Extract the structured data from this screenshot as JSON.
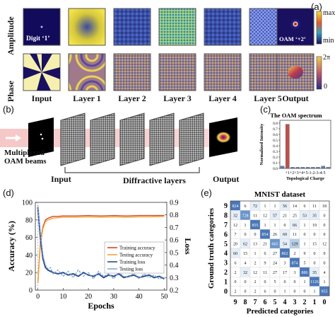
{
  "panel_labels": {
    "a": "(a)",
    "b": "(b)",
    "c": "(c)",
    "d": "(d)",
    "e": "(e)"
  },
  "panel_a": {
    "row_labels": [
      "Amplitude",
      "Phase"
    ],
    "column_labels": [
      "Input",
      "Layer 1",
      "Layer 2",
      "Layer 3",
      "Layer 4",
      "Layer 5",
      "Output"
    ],
    "tile_captions": {
      "input": "Digit ‘1’",
      "output": "OAM ‘+2’"
    },
    "amplitude_colorbar": {
      "max": "max",
      "min": "min"
    },
    "phase_colorbar": {
      "max": "2π",
      "min": "0"
    }
  },
  "panel_b": {
    "source_label_1": "Multiplexed",
    "source_label_2": "OAM beams",
    "input_label": "Input",
    "layers_label": "Diffractive layers",
    "output_label": "Output"
  },
  "chart_data": [
    {
      "type": "bar",
      "title": "The OAM spectrum",
      "xlabel": "Topological Charge",
      "ylabel": "Normalized Intensity",
      "categories": [
        "+1",
        "+2",
        "+3",
        "+4",
        "+5",
        "-1",
        "-2",
        "-3",
        "-4",
        "-5"
      ],
      "values": [
        0.04,
        0.78,
        0.02,
        0.02,
        0.02,
        0.02,
        0.02,
        0.02,
        0.04,
        0.02
      ],
      "ylim": [
        0,
        0.85
      ],
      "yticks": [
        "0.0",
        "0.1",
        "0.2",
        "0.3",
        "0.4",
        "0.5",
        "0.6",
        "0.7",
        "0.8"
      ],
      "tick_text": "+1+2+3+4+5-1-2-3-4-5",
      "colors": {
        "bars": "#5b7db8",
        "highlight": "#c0504d"
      }
    },
    {
      "type": "line",
      "xlabel": "Epochs",
      "ylabel": "Accuracy (%)",
      "y2label": "Loss",
      "xlim": [
        -1,
        51
      ],
      "ylim": [
        0,
        100
      ],
      "y2lim": [
        0.2,
        0.9
      ],
      "xticks": [
        "0",
        "10",
        "20",
        "30",
        "40",
        "50"
      ],
      "yticks": [
        "0",
        "20",
        "40",
        "60",
        "80",
        "100"
      ],
      "y2ticks": [
        "0.2",
        "0.3",
        "0.4",
        "0.5",
        "0.6",
        "0.7",
        "0.8",
        "0.9"
      ],
      "legend_position": "center-right",
      "series": [
        {
          "name": "Training accuracy",
          "axis": "left",
          "color": "#d9442b",
          "x": [
            0,
            1,
            2,
            3,
            4,
            5,
            6,
            8,
            10,
            15,
            20,
            25,
            30,
            35,
            40,
            45,
            50
          ],
          "y": [
            8,
            55,
            72,
            80,
            82,
            83,
            84,
            84,
            84.5,
            84.5,
            85,
            84.5,
            85,
            84.5,
            85,
            85,
            85
          ]
        },
        {
          "name": "Testing accuracy",
          "axis": "left",
          "color": "#f0a535",
          "x": [
            0,
            1,
            2,
            3,
            4,
            5,
            6,
            8,
            10,
            15,
            20,
            25,
            30,
            35,
            40,
            45,
            50
          ],
          "y": [
            8,
            52,
            70,
            78,
            80,
            81,
            82,
            82.5,
            83,
            83,
            83.5,
            83,
            83.5,
            83,
            83.5,
            83.5,
            84
          ]
        },
        {
          "name": "Training loss",
          "axis": "right",
          "color": "#2c4f8c",
          "x": [
            0,
            1,
            2,
            3,
            4,
            5,
            6,
            8,
            10,
            12,
            14,
            16,
            18,
            20,
            22,
            24,
            26,
            28,
            30,
            32,
            34,
            36,
            38,
            40,
            42,
            44,
            46,
            48,
            50
          ],
          "y": [
            0.86,
            0.62,
            0.45,
            0.38,
            0.36,
            0.35,
            0.34,
            0.33,
            0.34,
            0.32,
            0.33,
            0.31,
            0.34,
            0.32,
            0.31,
            0.33,
            0.3,
            0.32,
            0.31,
            0.33,
            0.3,
            0.31,
            0.32,
            0.3,
            0.31,
            0.32,
            0.3,
            0.31,
            0.29
          ]
        },
        {
          "name": "Testing loss",
          "axis": "right",
          "color": "#8aa8d8",
          "x": [
            0,
            1,
            2,
            3,
            4,
            5,
            6,
            8,
            10,
            12,
            14,
            16,
            18,
            20,
            22,
            24,
            26,
            28,
            30,
            32,
            34,
            36,
            38,
            40,
            42,
            44,
            46,
            48,
            50
          ],
          "y": [
            0.88,
            0.66,
            0.48,
            0.4,
            0.37,
            0.38,
            0.33,
            0.36,
            0.31,
            0.35,
            0.3,
            0.36,
            0.31,
            0.34,
            0.29,
            0.35,
            0.31,
            0.33,
            0.29,
            0.34,
            0.31,
            0.3,
            0.34,
            0.29,
            0.33,
            0.3,
            0.32,
            0.29,
            0.3
          ]
        }
      ]
    },
    {
      "type": "heatmap",
      "title": "MNIST dataset",
      "xlabel": "Predicted categories",
      "ylabel": "Ground truth categories",
      "row_labels": [
        "9",
        "8",
        "7",
        "6",
        "5",
        "4",
        "3",
        "2",
        "1",
        "0"
      ],
      "col_labels": [
        "9",
        "8",
        "7",
        "6",
        "5",
        "4",
        "3",
        "2",
        "1",
        "0"
      ],
      "values": [
        [
          824,
          6,
          72,
          1,
          1,
          56,
          14,
          6,
          11,
          18
        ],
        [
          32,
          728,
          11,
          12,
          57,
          21,
          25,
          53,
          35,
          0
        ],
        [
          12,
          1,
          855,
          1,
          1,
          0,
          66,
          1,
          19,
          0
        ],
        [
          7,
          0,
          0,
          854,
          26,
          60,
          11,
          0,
          0,
          0
        ],
        [
          20,
          62,
          13,
          21,
          665,
          54,
          129,
          1,
          15,
          12
        ],
        [
          60,
          15,
          1,
          6,
          27,
          862,
          2,
          9,
          0,
          0
        ],
        [
          6,
          4,
          2,
          9,
          24,
          3,
          874,
          5,
          0,
          0
        ],
        [
          2,
          32,
          12,
          11,
          27,
          17,
          3,
          886,
          35,
          4
        ],
        [
          0,
          0,
          2,
          0,
          5,
          0,
          0,
          1,
          1126,
          1
        ],
        [
          2,
          0,
          2,
          6,
          0,
          1,
          0,
          0,
          1,
          955
        ]
      ],
      "diag_max": 1126
    }
  ]
}
